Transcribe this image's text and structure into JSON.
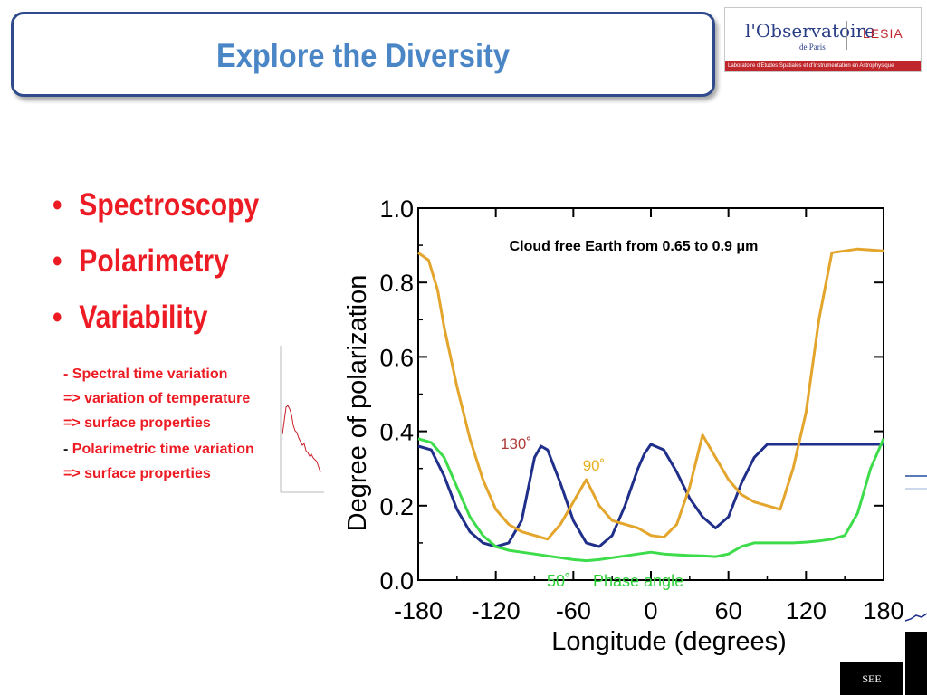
{
  "slide": {
    "title": "Explore the Diversity",
    "bullets": [
      "Spectroscopy",
      "Polarimetry",
      "Variability"
    ],
    "notes": [
      {
        "prefix": "",
        "text": "- Spectral time variation"
      },
      {
        "prefix": "",
        "text": "=> variation of temperature"
      },
      {
        "prefix": "",
        "text": "=> surface properties"
      },
      {
        "prefix": "-",
        "text": " Polarimetric time variation"
      },
      {
        "prefix": "",
        "text": "=> surface properties"
      }
    ]
  },
  "logo": {
    "line1": "l'Observatoire",
    "line2": "de Paris",
    "lesia": "LESIA",
    "band": "Laboratoire d'Études Spatiales et d'Instrumentation en Astrophysique"
  },
  "see_logo": {
    "text": "SEE"
  },
  "colors": {
    "title": "#4a86c6",
    "bullets": "#ed1c24",
    "frame": "#2f4b8c"
  },
  "chart_data": {
    "type": "line",
    "title": "Cloud free Earth from 0.65 to 0.9 μm",
    "xlabel": "Longitude (degrees)",
    "ylabel": "Degree of polarization",
    "xlim": [
      -180,
      180
    ],
    "ylim": [
      0,
      1.0
    ],
    "xticks": [
      "-180",
      "-120",
      "-60",
      "0",
      "60",
      "120",
      "180"
    ],
    "xtick_values": [
      -180,
      -120,
      -60,
      0,
      60,
      120,
      180
    ],
    "yticks": [
      "0.0",
      "0.2",
      "0.4",
      "0.6",
      "0.8",
      "1.0"
    ],
    "ytick_values": [
      0,
      0.2,
      0.4,
      0.6,
      0.8,
      1.0
    ],
    "legend_note": "Phase angle",
    "series": [
      {
        "name": "130˚",
        "color": "#1f2f8a",
        "x": [
          -180,
          -170,
          -160,
          -150,
          -140,
          -130,
          -120,
          -110,
          -100,
          -90,
          -85,
          -80,
          -70,
          -60,
          -50,
          -40,
          -30,
          -20,
          -10,
          -5,
          0,
          10,
          20,
          30,
          40,
          50,
          60,
          70,
          80,
          90,
          100,
          120,
          140,
          160,
          180
        ],
        "y": [
          0.36,
          0.35,
          0.28,
          0.19,
          0.13,
          0.1,
          0.09,
          0.1,
          0.16,
          0.33,
          0.36,
          0.35,
          0.26,
          0.16,
          0.1,
          0.09,
          0.12,
          0.2,
          0.3,
          0.34,
          0.365,
          0.35,
          0.29,
          0.22,
          0.17,
          0.14,
          0.17,
          0.26,
          0.33,
          0.365,
          0.365,
          0.365,
          0.365,
          0.365,
          0.365
        ]
      },
      {
        "name": "90˚",
        "color": "#e3a52c",
        "x": [
          -180,
          -172,
          -165,
          -160,
          -150,
          -140,
          -130,
          -120,
          -110,
          -100,
          -90,
          -80,
          -70,
          -60,
          -50,
          -40,
          -30,
          -20,
          -10,
          0,
          10,
          20,
          30,
          40,
          50,
          60,
          70,
          80,
          90,
          100,
          110,
          120,
          130,
          140,
          160,
          180
        ],
        "y": [
          0.88,
          0.86,
          0.78,
          0.68,
          0.52,
          0.38,
          0.27,
          0.19,
          0.15,
          0.13,
          0.12,
          0.11,
          0.15,
          0.21,
          0.27,
          0.2,
          0.16,
          0.15,
          0.14,
          0.12,
          0.115,
          0.15,
          0.25,
          0.39,
          0.33,
          0.27,
          0.23,
          0.21,
          0.2,
          0.19,
          0.3,
          0.45,
          0.7,
          0.88,
          0.89,
          0.885
        ]
      },
      {
        "name": "50˚",
        "color": "#3ddc4a",
        "x": [
          -180,
          -170,
          -160,
          -150,
          -140,
          -130,
          -120,
          -110,
          -100,
          -90,
          -80,
          -70,
          -60,
          -50,
          -40,
          -30,
          -20,
          -10,
          0,
          10,
          20,
          30,
          40,
          50,
          60,
          70,
          80,
          90,
          100,
          110,
          120,
          130,
          140,
          150,
          160,
          170,
          180
        ],
        "y": [
          0.38,
          0.37,
          0.33,
          0.25,
          0.17,
          0.12,
          0.09,
          0.08,
          0.075,
          0.07,
          0.065,
          0.06,
          0.055,
          0.052,
          0.055,
          0.06,
          0.065,
          0.07,
          0.075,
          0.07,
          0.068,
          0.066,
          0.065,
          0.063,
          0.07,
          0.09,
          0.1,
          0.1,
          0.1,
          0.1,
          0.102,
          0.105,
          0.11,
          0.12,
          0.18,
          0.3,
          0.38
        ]
      }
    ]
  }
}
